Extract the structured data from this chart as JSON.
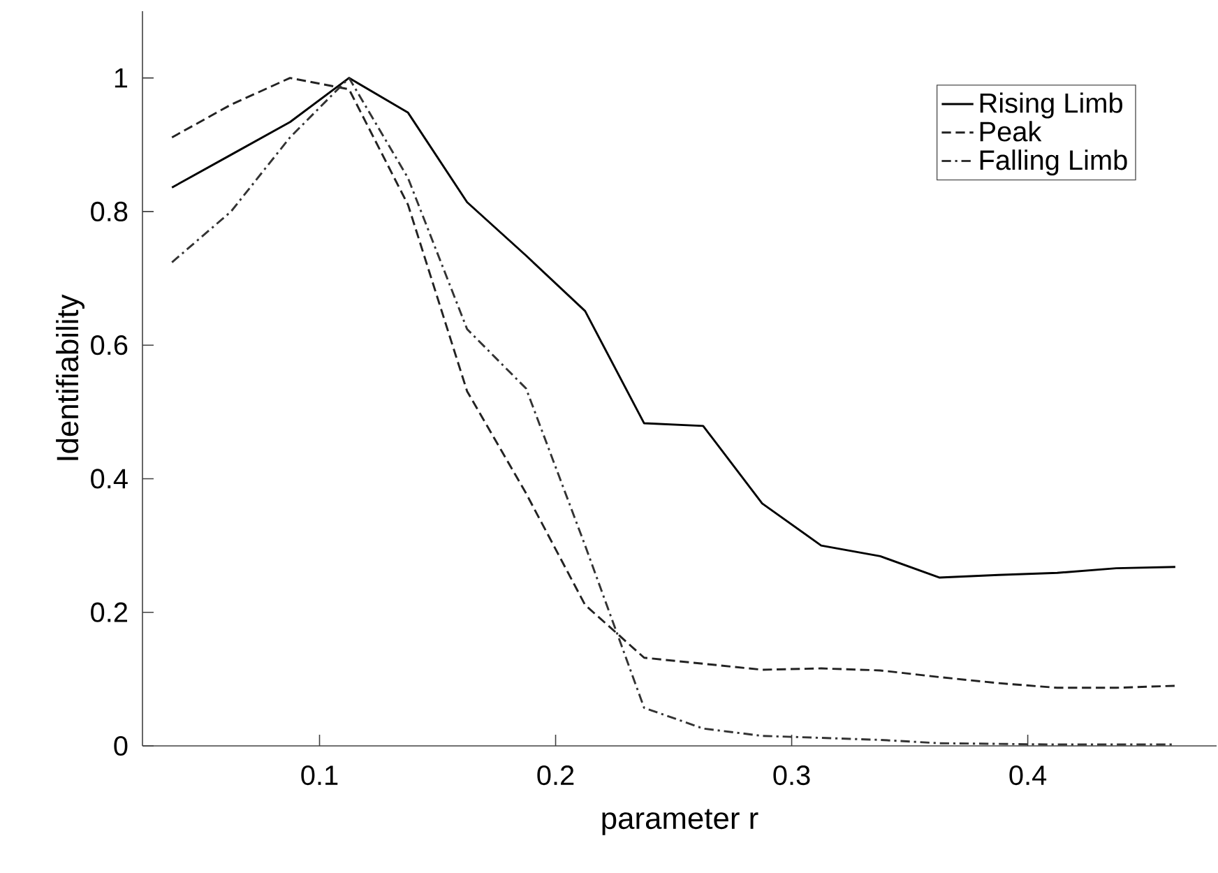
{
  "chart_data": {
    "type": "line",
    "xlabel": "parameter r",
    "ylabel": "Identifiability",
    "x": [
      0.0375,
      0.0625,
      0.0875,
      0.1125,
      0.1375,
      0.1625,
      0.1875,
      0.2125,
      0.2375,
      0.2625,
      0.2875,
      0.3125,
      0.3375,
      0.3625,
      0.3875,
      0.4125,
      0.4375,
      0.4625
    ],
    "series": [
      {
        "name": "Rising Limb",
        "color": "#000000",
        "line_style": "solid",
        "values": [
          0.836,
          0.885,
          0.934,
          1.0,
          0.948,
          0.814,
          0.734,
          0.651,
          0.483,
          0.479,
          0.363,
          0.3,
          0.284,
          0.252,
          0.256,
          0.259,
          0.266,
          0.268
        ]
      },
      {
        "name": "Peak",
        "color": "#222222",
        "line_style": "dashed",
        "values": [
          0.911,
          0.96,
          1.0,
          0.983,
          0.81,
          0.531,
          0.378,
          0.211,
          0.132,
          0.123,
          0.114,
          0.116,
          0.113,
          0.103,
          0.094,
          0.087,
          0.087,
          0.09
        ]
      },
      {
        "name": "Falling Limb",
        "color": "#333333",
        "line_style": "dashdot",
        "values": [
          0.724,
          0.8,
          0.911,
          1.0,
          0.85,
          0.624,
          0.535,
          0.3,
          0.057,
          0.026,
          0.015,
          0.012,
          0.009,
          0.004,
          0.003,
          0.002,
          0.002,
          0.002
        ]
      }
    ],
    "xlim": [
      0.025,
      0.48
    ],
    "ylim": [
      0,
      1.1
    ],
    "xticks": [
      0.1,
      0.2,
      0.3,
      0.4
    ],
    "yticks": [
      0,
      0.2,
      0.4,
      0.6,
      0.8,
      1
    ],
    "grid": false,
    "legend": "top right",
    "marker": "none"
  }
}
